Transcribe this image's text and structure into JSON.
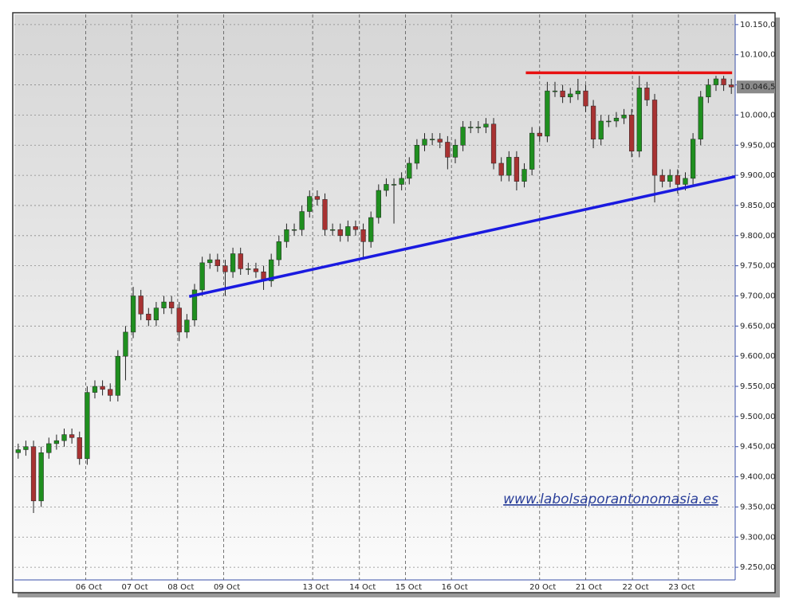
{
  "chart_data": {
    "type": "candlestick",
    "ylim": [
      9229,
      10167
    ],
    "xlim": [
      -0.5,
      93.5
    ],
    "yticks": [
      {
        "value": 9250,
        "label": "9.250,00"
      },
      {
        "value": 9300,
        "label": "9.300,00"
      },
      {
        "value": 9350,
        "label": "9.350,00"
      },
      {
        "value": 9400,
        "label": "9.400,00"
      },
      {
        "value": 9450,
        "label": "9.450,00"
      },
      {
        "value": 9500,
        "label": "9.500,00"
      },
      {
        "value": 9550,
        "label": "9.550,00"
      },
      {
        "value": 9600,
        "label": "9.600,00"
      },
      {
        "value": 9650,
        "label": "9.650,00"
      },
      {
        "value": 9700,
        "label": "9.700,00"
      },
      {
        "value": 9750,
        "label": "9.750,00"
      },
      {
        "value": 9800,
        "label": "9.800,00"
      },
      {
        "value": 9850,
        "label": "9.850,00"
      },
      {
        "value": 9900,
        "label": "9.900,00"
      },
      {
        "value": 9950,
        "label": "9.950,00"
      },
      {
        "value": 10000,
        "label": "10.000,0"
      },
      {
        "value": 10050,
        "label": "10.050,0"
      },
      {
        "value": 10100,
        "label": "10.100,0"
      },
      {
        "value": 10150,
        "label": "10.150,0"
      }
    ],
    "xticks": [
      {
        "value": 8.8,
        "label": "06 Oct"
      },
      {
        "value": 14.8,
        "label": "07 Oct"
      },
      {
        "value": 20.8,
        "label": "08 Oct"
      },
      {
        "value": 26.8,
        "label": "09 Oct"
      },
      {
        "value": 38.4,
        "label": "13 Oct"
      },
      {
        "value": 44.5,
        "label": "14 Oct"
      },
      {
        "value": 50.5,
        "label": "15 Oct"
      },
      {
        "value": 56.5,
        "label": "16 Oct"
      },
      {
        "value": 68.0,
        "label": "20 Oct"
      },
      {
        "value": 74.0,
        "label": "21 Oct"
      },
      {
        "value": 80.1,
        "label": "22 Oct"
      },
      {
        "value": 86.1,
        "label": "23 Oct"
      }
    ],
    "grid": true,
    "up_color": "#1f8f1f",
    "down_color": "#a83232",
    "open": [
      9440,
      9445,
      9450,
      9360,
      9440,
      9455,
      9460,
      9470,
      9465,
      9430,
      9540,
      9550,
      9545,
      9535,
      9600,
      9640,
      9700,
      9670,
      9660,
      9680,
      9690,
      9680,
      9640,
      9660,
      9710,
      9755,
      9760,
      9750,
      9740,
      9770,
      9745,
      9745,
      9740,
      9725,
      9760,
      9790,
      9810,
      9810,
      9840,
      9865,
      9860,
      9810,
      9810,
      9800,
      9815,
      9810,
      9790,
      9830,
      9875,
      9885,
      9885,
      9895,
      9920,
      9950,
      9960,
      9960,
      9955,
      9930,
      9950,
      9980,
      9980,
      9980,
      9985,
      9920,
      9900,
      9930,
      9890,
      9910,
      9970,
      9965,
      10040,
      10040,
      10030,
      10035,
      10040,
      10015,
      9960,
      9990,
      9990,
      9995,
      10000,
      9940,
      10045,
      10025,
      9900,
      9890,
      9900,
      9885,
      9895,
      9960,
      10030,
      10050,
      10060,
      10050
    ],
    "high": [
      9455,
      9460,
      9460,
      9450,
      9465,
      9470,
      9480,
      9480,
      9475,
      9550,
      9560,
      9560,
      9555,
      9610,
      9650,
      9715,
      9710,
      9680,
      9690,
      9700,
      9700,
      9690,
      9670,
      9720,
      9765,
      9770,
      9770,
      9760,
      9780,
      9780,
      9755,
      9755,
      9750,
      9770,
      9800,
      9820,
      9820,
      9850,
      9875,
      9875,
      9870,
      9820,
      9820,
      9825,
      9825,
      9820,
      9840,
      9885,
      9895,
      9895,
      9905,
      9930,
      9960,
      9970,
      9970,
      9970,
      9965,
      9960,
      9990,
      9990,
      9990,
      9995,
      9995,
      9930,
      9940,
      9940,
      9920,
      9980,
      9980,
      10055,
      10055,
      10050,
      10045,
      10060,
      10050,
      10025,
      10000,
      10000,
      10005,
      10010,
      10010,
      10065,
      10055,
      10035,
      9910,
      9910,
      9910,
      9905,
      9970,
      10040,
      10060,
      10065,
      10065,
      10060
    ],
    "low": [
      9430,
      9435,
      9340,
      9350,
      9430,
      9445,
      9450,
      9455,
      9420,
      9420,
      9530,
      9535,
      9525,
      9525,
      9560,
      9630,
      9660,
      9650,
      9650,
      9670,
      9670,
      9625,
      9630,
      9650,
      9700,
      9745,
      9740,
      9700,
      9730,
      9735,
      9735,
      9730,
      9710,
      9715,
      9750,
      9780,
      9800,
      9800,
      9830,
      9850,
      9800,
      9800,
      9790,
      9790,
      9800,
      9760,
      9780,
      9820,
      9865,
      9820,
      9875,
      9885,
      9910,
      9940,
      9950,
      9945,
      9910,
      9920,
      9940,
      9970,
      9970,
      9970,
      9910,
      9890,
      9890,
      9875,
      9880,
      9900,
      9955,
      9955,
      10030,
      10020,
      10020,
      10025,
      10005,
      9945,
      9950,
      9980,
      9980,
      9985,
      9930,
      9930,
      10015,
      9855,
      9880,
      9880,
      9870,
      9875,
      9885,
      9950,
      10020,
      10040,
      10040,
      10035
    ],
    "close": [
      9445,
      9450,
      9360,
      9440,
      9455,
      9460,
      9470,
      9465,
      9430,
      9540,
      9550,
      9545,
      9535,
      9600,
      9640,
      9700,
      9670,
      9660,
      9680,
      9690,
      9680,
      9640,
      9660,
      9710,
      9755,
      9760,
      9750,
      9740,
      9770,
      9745,
      9745,
      9740,
      9725,
      9760,
      9790,
      9810,
      9810,
      9840,
      9865,
      9860,
      9810,
      9810,
      9800,
      9815,
      9810,
      9790,
      9830,
      9875,
      9885,
      9885,
      9895,
      9920,
      9950,
      9960,
      9960,
      9955,
      9930,
      9950,
      9980,
      9980,
      9980,
      9985,
      9920,
      9900,
      9930,
      9890,
      9910,
      9970,
      9965,
      10040,
      10040,
      10030,
      10035,
      10040,
      10015,
      9960,
      9990,
      9990,
      9995,
      10000,
      9940,
      10045,
      10025,
      9900,
      9890,
      9900,
      9885,
      9895,
      9960,
      10030,
      10050,
      10060,
      10050,
      10046.5
    ],
    "last_value_label": "10.046,5",
    "annotations": [
      {
        "color": "#e81010",
        "x": [
          66.2,
          93.1
        ],
        "y": [
          10070,
          10070
        ]
      },
      {
        "color": "#1a1ae0",
        "x": [
          22.3,
          93.5
        ],
        "y": [
          9699,
          9898
        ]
      }
    ],
    "watermark": "www.labolsaporantonomasia.es"
  }
}
